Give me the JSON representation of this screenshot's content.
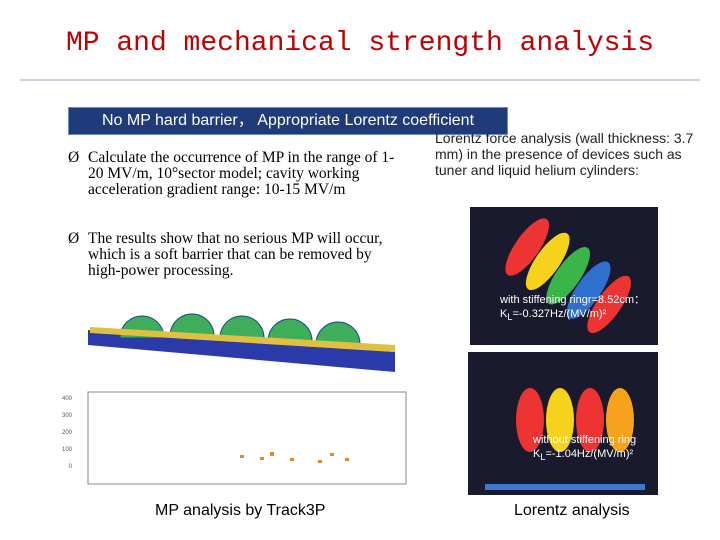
{
  "title": "MP and mechanical strength analysis",
  "banner": "No MP hard barrier， Appropriate Lorentz coefficient",
  "bullets": [
    "Calculate the occurrence of MP in the range of 1-20 MV/m, 10°sector model; cavity working acceleration gradient range: 10-15 MV/m",
    "The results show that no serious MP will occur, which is a soft barrier that can be removed by high-power processing."
  ],
  "lorentz_text": "Lorentz force analysis (wall thickness: 3.7 mm) in the presence of devices such as tuner and liquid helium cylinders:",
  "figure_1": {
    "caption": "with stiffening ringr=8.52cm：",
    "k": "K",
    "k_sub": "L",
    "k_value": "=-0.327Hz/(MV/m)²"
  },
  "figure_2": {
    "caption": "without stiffening ring",
    "k": "K",
    "k_sub": "L",
    "k_value": "=-1.04Hz/(MV/m)²"
  },
  "plot_yticks": [
    "400",
    "300",
    "200",
    "100",
    "0"
  ],
  "caption_left": "MP analysis by Track3P",
  "caption_right": "Lorentz analysis"
}
